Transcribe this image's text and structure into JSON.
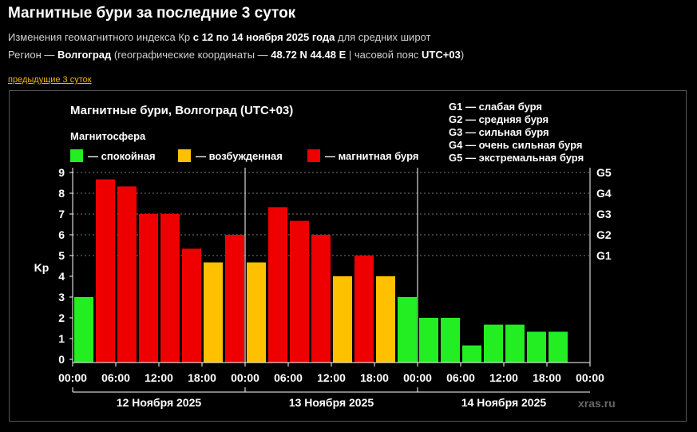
{
  "page": {
    "title": "Магнитные бури за последние 3 суток",
    "line1": {
      "prefix": "Изменения геомагнитного индекса Кр ",
      "period": "с 12 по 14 ноября 2025 года",
      "suffix": " для средних широт"
    },
    "line2": {
      "region_prefix": "Регион — ",
      "region": "Волгоград",
      "coords_prefix": " (географические координаты — ",
      "coords": "48.72 N 44.48 E",
      "tz_prefix": " | часовой пояс ",
      "tz": "UTC+03",
      "tz_suffix": ")"
    },
    "prev_link": "предыдущие 3 суток",
    "watermark": "xras.ru"
  },
  "chart_data": {
    "type": "bar",
    "title": "Магнитные бури, Волгоград (UTC+03)",
    "ylabel": "Kp",
    "ylim": [
      0,
      9
    ],
    "yticks": [
      "0",
      "1",
      "2",
      "3",
      "4",
      "5",
      "6",
      "7",
      "8",
      "9"
    ],
    "xticks": [
      "00:00",
      "06:00",
      "12:00",
      "18:00",
      "00:00",
      "06:00",
      "12:00",
      "18:00",
      "00:00",
      "06:00",
      "12:00",
      "18:00",
      "00:00"
    ],
    "days": [
      "12 Ноября 2025",
      "13 Ноября 2025",
      "14 Ноября 2025"
    ],
    "legend_title": "Магнитосфера",
    "legend": [
      {
        "label": "— спокойная",
        "color": "#22ee22"
      },
      {
        "label": "— возбужденная",
        "color": "#ffc000"
      },
      {
        "label": "— магнитная буря",
        "color": "#ee0000"
      }
    ],
    "storm_levels": [
      {
        "level": "G1",
        "desc": "слабая буря",
        "kp": 5
      },
      {
        "level": "G2",
        "desc": "средняя буря",
        "kp": 6
      },
      {
        "level": "G3",
        "desc": "сильная буря",
        "kp": 7
      },
      {
        "level": "G4",
        "desc": "очень сильная буря",
        "kp": 8
      },
      {
        "level": "G5",
        "desc": "экстремальная буря",
        "kp": 9
      }
    ],
    "grid": "dotted horizontal at G-levels",
    "interval_hours": 3,
    "values": [
      3.0,
      8.67,
      8.33,
      7.0,
      7.0,
      5.33,
      4.67,
      6.0,
      4.67,
      7.33,
      6.67,
      6.0,
      4.0,
      5.0,
      4.0,
      3.0,
      2.0,
      2.0,
      0.67,
      1.67,
      1.67,
      1.33,
      1.33
    ],
    "colors": [
      "#22ee22",
      "#ee0000",
      "#ee0000",
      "#ee0000",
      "#ee0000",
      "#ee0000",
      "#ffc000",
      "#ee0000",
      "#ffc000",
      "#ee0000",
      "#ee0000",
      "#ee0000",
      "#ffc000",
      "#ee0000",
      "#ffc000",
      "#22ee22",
      "#22ee22",
      "#22ee22",
      "#22ee22",
      "#22ee22",
      "#22ee22",
      "#22ee22",
      "#22ee22"
    ]
  }
}
